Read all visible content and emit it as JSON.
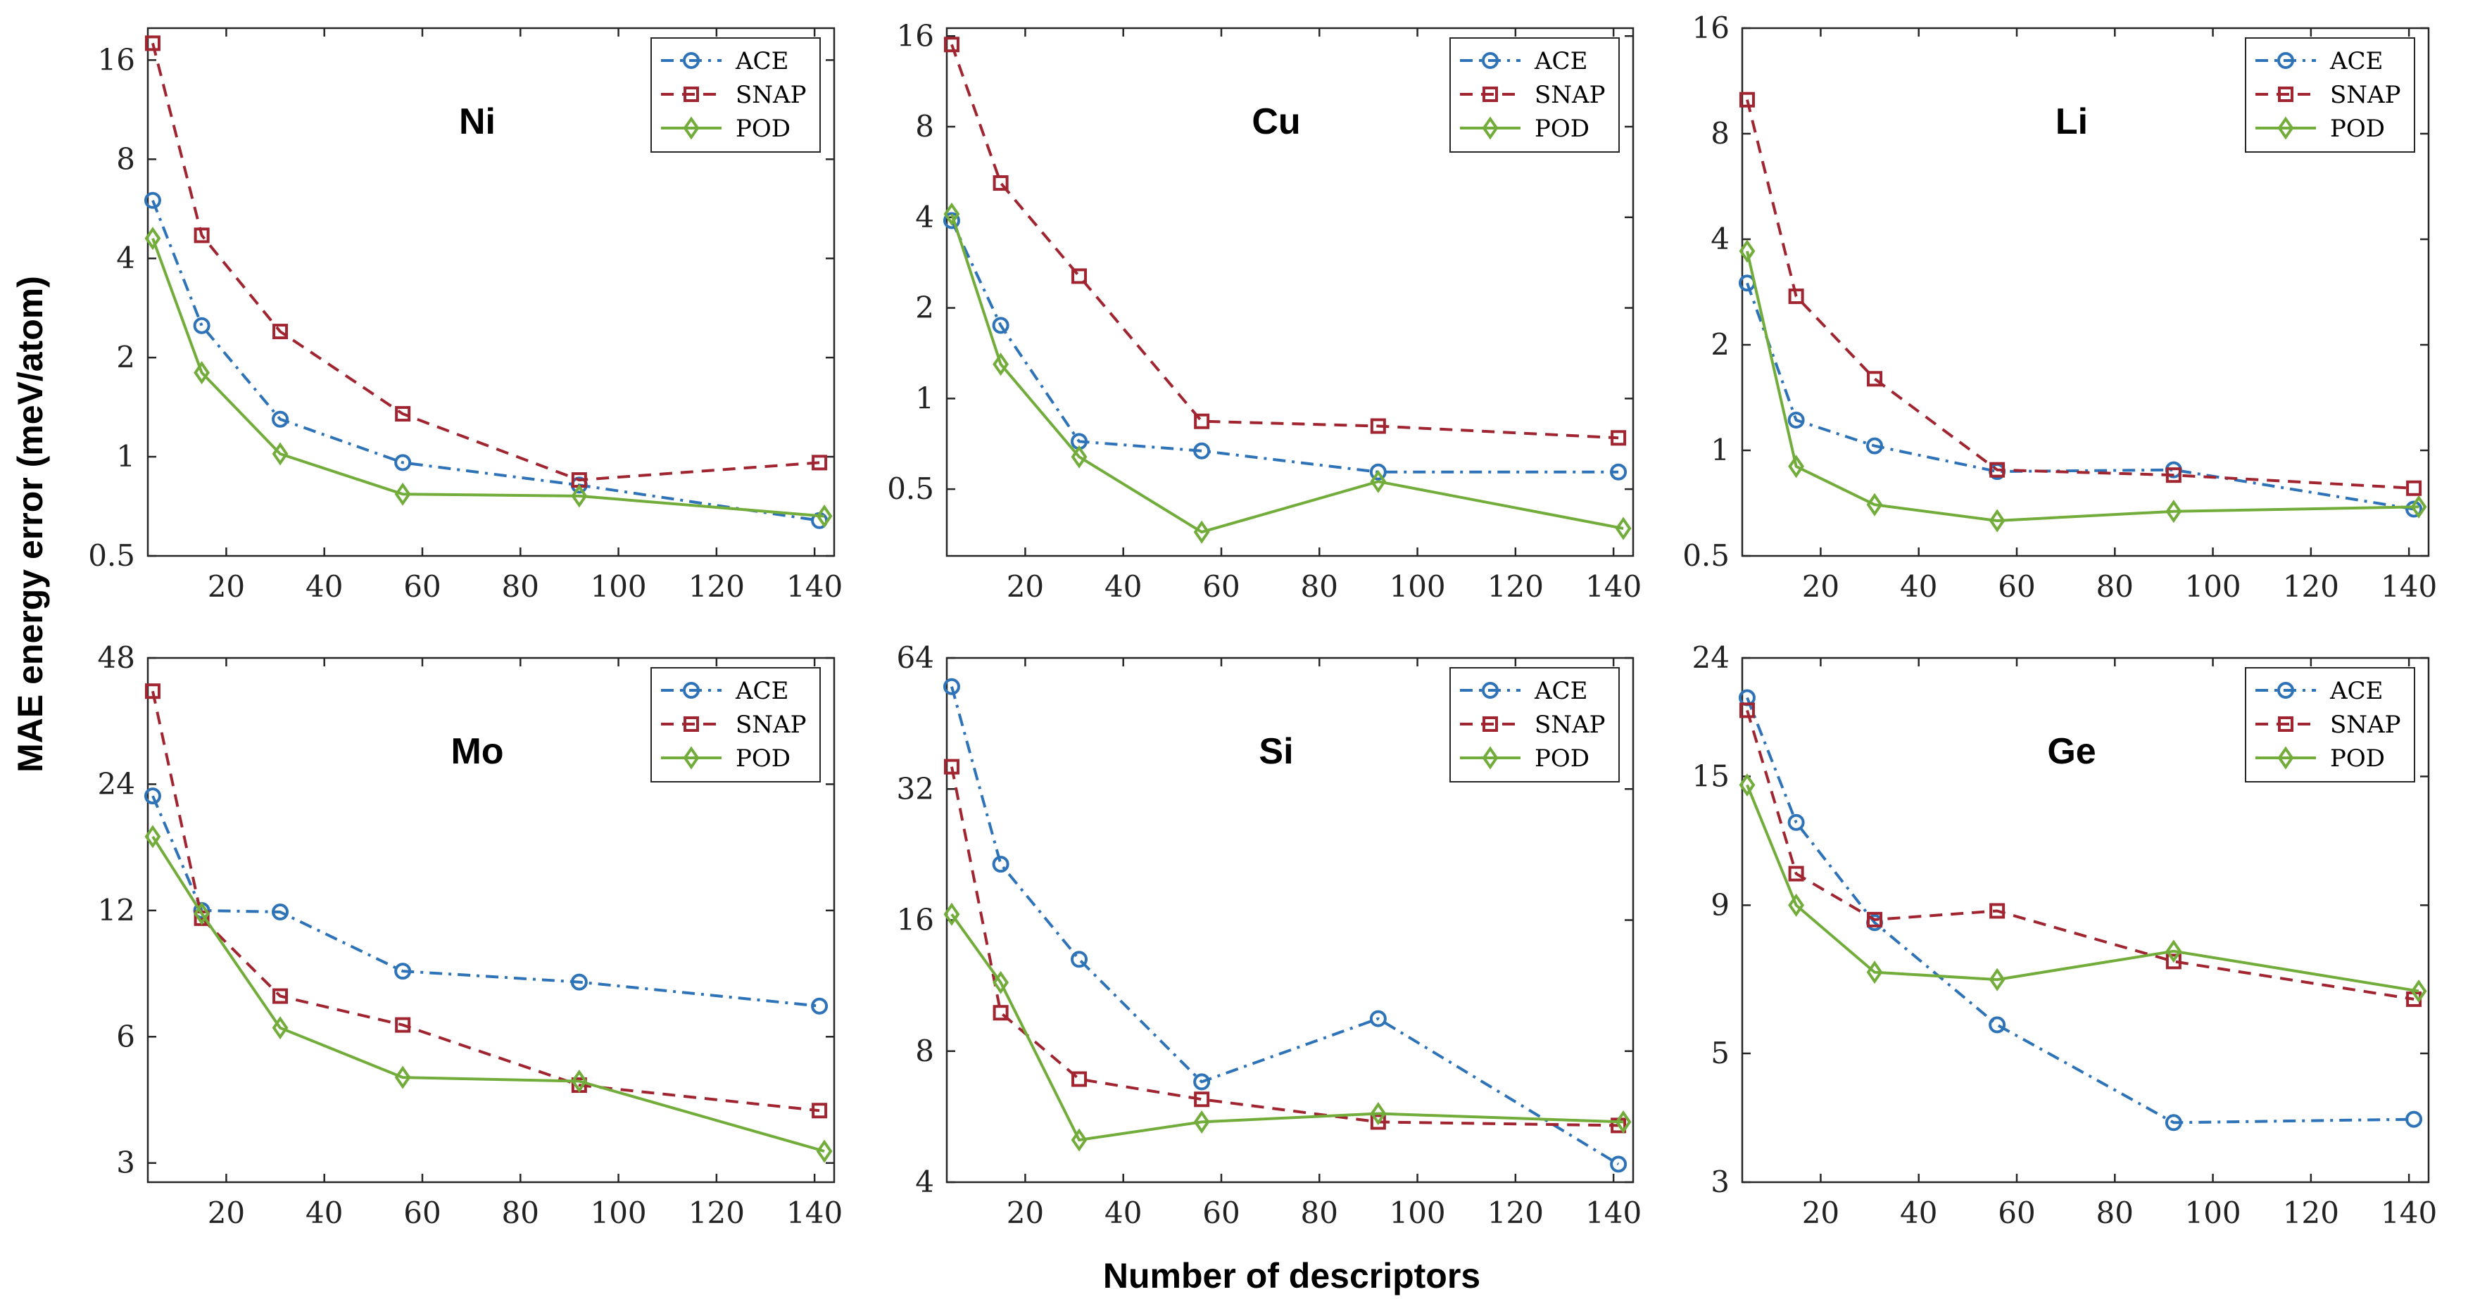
{
  "figure": {
    "xlabel": "Number of descriptors",
    "ylabel": "MAE energy error (meV/atom)"
  },
  "series_styles": {
    "ACE": {
      "color": "#2e73b8",
      "dash": "18 9 4 9",
      "marker": "circle"
    },
    "SNAP": {
      "color": "#a02530",
      "dash": "18 12",
      "marker": "square"
    },
    "POD": {
      "color": "#72ac3b",
      "dash": "",
      "marker": "diamond"
    }
  },
  "chart_data": [
    {
      "type": "line",
      "title": "Ni",
      "scale": "log",
      "xlim": [
        4,
        144
      ],
      "ylim": [
        0.5,
        20
      ],
      "xticks": [
        "20",
        "40",
        "60",
        "80",
        "100",
        "120",
        "140"
      ],
      "yticks": [
        "0.5",
        "1",
        "2",
        "4",
        "8",
        "16"
      ],
      "legend": "top-right",
      "series": [
        {
          "name": "ACE",
          "x": [
            5,
            15,
            31,
            56,
            92,
            141
          ],
          "y": [
            6.0,
            2.5,
            1.3,
            0.96,
            0.82,
            0.64
          ]
        },
        {
          "name": "SNAP",
          "x": [
            5,
            15,
            31,
            56,
            92,
            141
          ],
          "y": [
            18.0,
            4.7,
            2.4,
            1.35,
            0.85,
            0.96
          ]
        },
        {
          "name": "POD",
          "x": [
            5,
            15,
            31,
            56,
            92,
            142
          ],
          "y": [
            4.6,
            1.8,
            1.02,
            0.77,
            0.76,
            0.66
          ]
        }
      ]
    },
    {
      "type": "line",
      "title": "Cu",
      "scale": "log",
      "xlim": [
        4,
        144
      ],
      "ylim": [
        0.3,
        17
      ],
      "xticks": [
        "20",
        "40",
        "60",
        "80",
        "100",
        "120",
        "140"
      ],
      "yticks": [
        "0.5",
        "1",
        "2",
        "4",
        "8",
        "16"
      ],
      "legend": "top-right",
      "series": [
        {
          "name": "ACE",
          "x": [
            5,
            15,
            31,
            56,
            92,
            141
          ],
          "y": [
            3.9,
            1.75,
            0.72,
            0.67,
            0.57,
            0.57
          ]
        },
        {
          "name": "SNAP",
          "x": [
            5,
            15,
            31,
            56,
            92,
            141
          ],
          "y": [
            15.0,
            5.2,
            2.55,
            0.84,
            0.81,
            0.74
          ]
        },
        {
          "name": "POD",
          "x": [
            5,
            15,
            31,
            56,
            92,
            142
          ],
          "y": [
            4.1,
            1.3,
            0.64,
            0.36,
            0.53,
            0.37
          ]
        }
      ]
    },
    {
      "type": "line",
      "title": "Li",
      "scale": "log",
      "xlim": [
        4,
        144
      ],
      "ylim": [
        0.5,
        16
      ],
      "xticks": [
        "20",
        "40",
        "60",
        "80",
        "100",
        "120",
        "140"
      ],
      "yticks": [
        "0.5",
        "1",
        "2",
        "4",
        "8",
        "16"
      ],
      "legend": "top-right",
      "series": [
        {
          "name": "ACE",
          "x": [
            5,
            15,
            31,
            56,
            92,
            141
          ],
          "y": [
            3.0,
            1.22,
            1.03,
            0.87,
            0.88,
            0.68
          ]
        },
        {
          "name": "SNAP",
          "x": [
            5,
            15,
            31,
            56,
            92,
            141
          ],
          "y": [
            10.0,
            2.75,
            1.6,
            0.88,
            0.85,
            0.78
          ]
        },
        {
          "name": "POD",
          "x": [
            5,
            15,
            31,
            56,
            92,
            142
          ],
          "y": [
            3.7,
            0.9,
            0.7,
            0.63,
            0.67,
            0.69
          ]
        }
      ]
    },
    {
      "type": "line",
      "title": "Mo",
      "scale": "log",
      "xlim": [
        4,
        144
      ],
      "ylim": [
        2.7,
        48
      ],
      "xticks": [
        "20",
        "40",
        "60",
        "80",
        "100",
        "120",
        "140"
      ],
      "yticks": [
        "3",
        "6",
        "12",
        "24",
        "48"
      ],
      "legend": "top-right",
      "series": [
        {
          "name": "ACE",
          "x": [
            5,
            15,
            31,
            56,
            92,
            141
          ],
          "y": [
            22.5,
            12.0,
            11.9,
            8.6,
            8.1,
            7.1
          ]
        },
        {
          "name": "SNAP",
          "x": [
            5,
            15,
            31,
            56,
            92,
            141
          ],
          "y": [
            40.0,
            11.5,
            7.5,
            6.4,
            4.6,
            4.0
          ]
        },
        {
          "name": "POD",
          "x": [
            5,
            15,
            31,
            56,
            92,
            142
          ],
          "y": [
            18.0,
            11.8,
            6.3,
            4.8,
            4.7,
            3.2
          ]
        }
      ]
    },
    {
      "type": "line",
      "title": "Si",
      "scale": "log",
      "xlim": [
        4,
        144
      ],
      "ylim": [
        4,
        64
      ],
      "xticks": [
        "20",
        "40",
        "60",
        "80",
        "100",
        "120",
        "140"
      ],
      "yticks": [
        "4",
        "8",
        "16",
        "32",
        "64"
      ],
      "legend": "top-right",
      "series": [
        {
          "name": "ACE",
          "x": [
            5,
            15,
            31,
            56,
            92,
            141
          ],
          "y": [
            55.0,
            21.5,
            13.0,
            6.8,
            9.5,
            4.4
          ]
        },
        {
          "name": "SNAP",
          "x": [
            5,
            15,
            31,
            56,
            92,
            141
          ],
          "y": [
            36.0,
            9.8,
            6.9,
            6.2,
            5.5,
            5.4
          ]
        },
        {
          "name": "POD",
          "x": [
            5,
            15,
            31,
            56,
            92,
            142
          ],
          "y": [
            16.5,
            11.5,
            5.0,
            5.5,
            5.75,
            5.5
          ]
        }
      ]
    },
    {
      "type": "line",
      "title": "Ge",
      "scale": "log",
      "xlim": [
        4,
        144
      ],
      "ylim": [
        3,
        24
      ],
      "xticks": [
        "20",
        "40",
        "60",
        "80",
        "100",
        "120",
        "140"
      ],
      "yticks": [
        "3",
        "5",
        "9",
        "15",
        "24"
      ],
      "legend": "top-right",
      "series": [
        {
          "name": "ACE",
          "x": [
            5,
            15,
            31,
            56,
            92,
            141
          ],
          "y": [
            20.5,
            12.5,
            8.4,
            5.6,
            3.8,
            3.85
          ]
        },
        {
          "name": "SNAP",
          "x": [
            5,
            15,
            31,
            56,
            92,
            141
          ],
          "y": [
            19.5,
            10.2,
            8.5,
            8.8,
            7.2,
            6.2
          ]
        },
        {
          "name": "POD",
          "x": [
            5,
            15,
            31,
            56,
            92,
            142
          ],
          "y": [
            14.5,
            9.0,
            6.9,
            6.7,
            7.5,
            6.4
          ]
        }
      ]
    }
  ]
}
